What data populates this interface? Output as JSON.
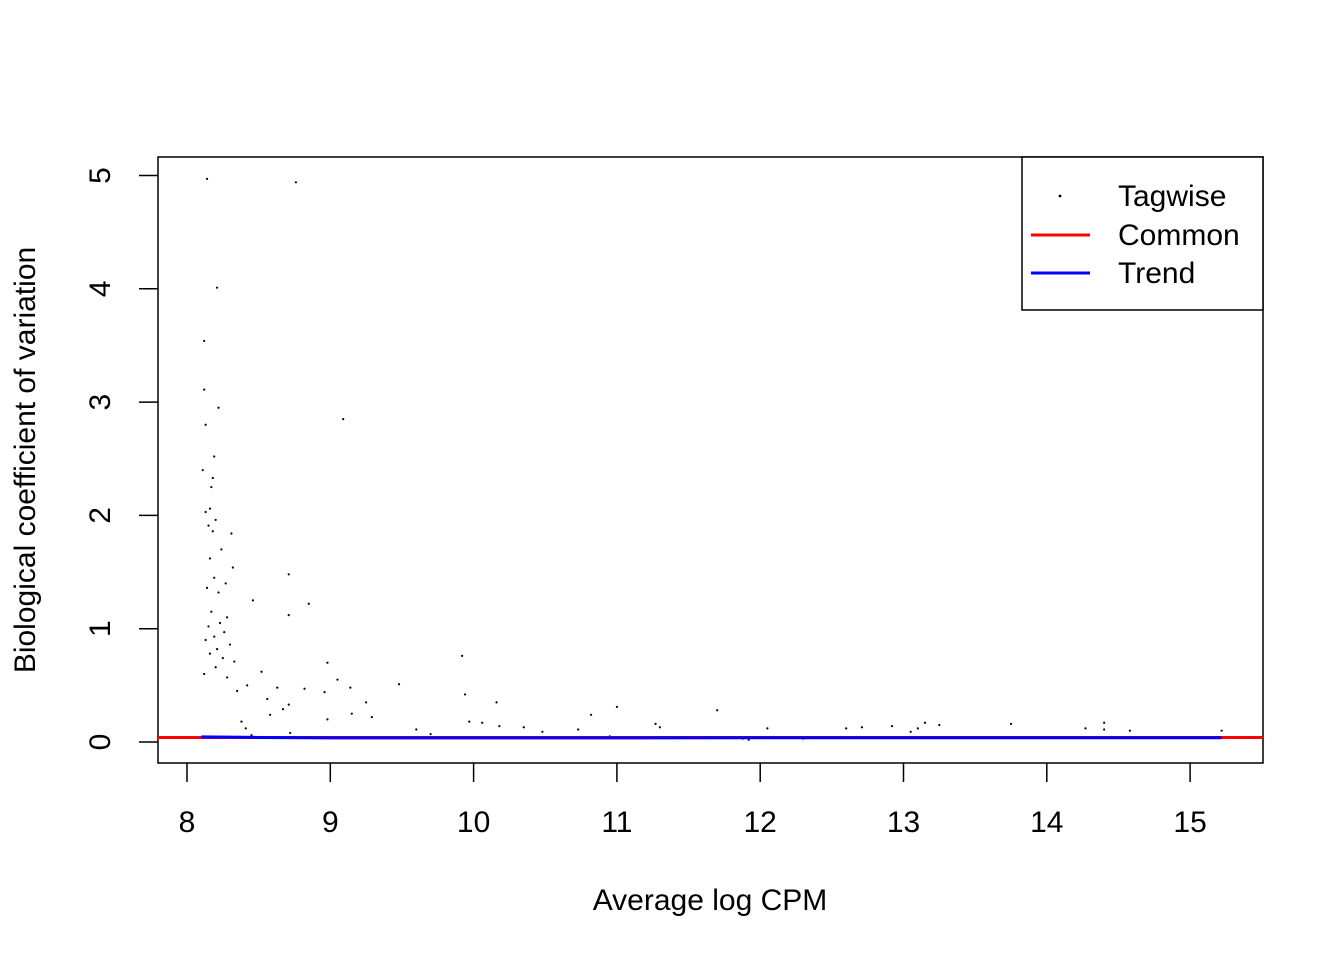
{
  "chart_data": {
    "type": "scatter",
    "title": "",
    "xlabel": "Average log CPM",
    "ylabel": "Biological coefficient of variation",
    "xlim": [
      7.8,
      15.5
    ],
    "ylim": [
      -0.2,
      5.2
    ],
    "x_ticks": [
      8,
      9,
      10,
      11,
      12,
      13,
      14,
      15
    ],
    "y_ticks": [
      0,
      1,
      2,
      3,
      4,
      5
    ],
    "x_tick_labels": [
      "8",
      "9",
      "10",
      "11",
      "12",
      "13",
      "14",
      15
    ],
    "y_tick_labels": [
      "0",
      "1",
      "2",
      "3",
      "4",
      "5"
    ],
    "grid": false,
    "legend_position": "top-right",
    "legend": [
      {
        "label": "Tagwise",
        "kind": "point",
        "color": "#000000"
      },
      {
        "label": "Common",
        "kind": "line",
        "color": "#ff0000"
      },
      {
        "label": "Trend",
        "kind": "line",
        "color": "#0000ff"
      }
    ],
    "series": [
      {
        "name": "Tagwise",
        "kind": "points",
        "color": "#000000",
        "points": [
          [
            8.14,
            4.97
          ],
          [
            8.76,
            4.94
          ],
          [
            8.21,
            4.01
          ],
          [
            8.12,
            3.54
          ],
          [
            8.12,
            3.11
          ],
          [
            8.22,
            2.95
          ],
          [
            9.09,
            2.85
          ],
          [
            8.13,
            2.8
          ],
          [
            8.19,
            2.52
          ],
          [
            8.11,
            2.4
          ],
          [
            8.18,
            2.33
          ],
          [
            8.17,
            2.25
          ],
          [
            8.16,
            2.06
          ],
          [
            8.13,
            2.03
          ],
          [
            8.2,
            1.96
          ],
          [
            8.15,
            1.91
          ],
          [
            8.18,
            1.86
          ],
          [
            8.31,
            1.84
          ],
          [
            8.24,
            1.7
          ],
          [
            8.16,
            1.62
          ],
          [
            8.32,
            1.54
          ],
          [
            8.71,
            1.48
          ],
          [
            8.19,
            1.45
          ],
          [
            8.27,
            1.4
          ],
          [
            8.14,
            1.36
          ],
          [
            8.22,
            1.32
          ],
          [
            8.46,
            1.25
          ],
          [
            8.85,
            1.22
          ],
          [
            8.71,
            1.12
          ],
          [
            8.17,
            1.15
          ],
          [
            8.28,
            1.1
          ],
          [
            8.23,
            1.05
          ],
          [
            8.15,
            1.02
          ],
          [
            8.26,
            0.97
          ],
          [
            8.19,
            0.93
          ],
          [
            8.13,
            0.9
          ],
          [
            8.3,
            0.86
          ],
          [
            8.21,
            0.82
          ],
          [
            8.16,
            0.78
          ],
          [
            8.25,
            0.74
          ],
          [
            8.33,
            0.71
          ],
          [
            8.98,
            0.7
          ],
          [
            8.2,
            0.66
          ],
          [
            8.52,
            0.62
          ],
          [
            8.12,
            0.6
          ],
          [
            8.28,
            0.57
          ],
          [
            9.05,
            0.55
          ],
          [
            8.42,
            0.5
          ],
          [
            8.63,
            0.48
          ],
          [
            8.82,
            0.47
          ],
          [
            8.35,
            0.45
          ],
          [
            8.96,
            0.44
          ],
          [
            9.14,
            0.48
          ],
          [
            9.92,
            0.76
          ],
          [
            9.94,
            0.42
          ],
          [
            8.56,
            0.38
          ],
          [
            9.25,
            0.35
          ],
          [
            10.16,
            0.35
          ],
          [
            8.71,
            0.33
          ],
          [
            11.0,
            0.31
          ],
          [
            8.67,
            0.29
          ],
          [
            11.7,
            0.28
          ],
          [
            9.15,
            0.25
          ],
          [
            9.48,
            0.51
          ],
          [
            10.82,
            0.24
          ],
          [
            9.29,
            0.22
          ],
          [
            8.98,
            0.2
          ],
          [
            9.97,
            0.18
          ],
          [
            10.06,
            0.17
          ],
          [
            10.18,
            0.14
          ],
          [
            10.35,
            0.13
          ],
          [
            10.73,
            0.11
          ],
          [
            9.6,
            0.11
          ],
          [
            11.27,
            0.16
          ],
          [
            11.3,
            0.13
          ],
          [
            12.05,
            0.12
          ],
          [
            12.6,
            0.12
          ],
          [
            12.71,
            0.13
          ],
          [
            12.92,
            0.14
          ],
          [
            13.15,
            0.17
          ],
          [
            13.25,
            0.15
          ],
          [
            13.75,
            0.16
          ],
          [
            14.27,
            0.12
          ],
          [
            14.4,
            0.17
          ],
          [
            14.4,
            0.11
          ],
          [
            14.58,
            0.1
          ],
          [
            15.22,
            0.1
          ],
          [
            10.48,
            0.09
          ],
          [
            13.05,
            0.09
          ],
          [
            13.1,
            0.12
          ],
          [
            12.3,
            0.03
          ],
          [
            11.92,
            0.02
          ],
          [
            11.88,
            0.03
          ],
          [
            10.95,
            0.05
          ],
          [
            9.7,
            0.07
          ],
          [
            8.41,
            0.12
          ],
          [
            8.58,
            0.24
          ],
          [
            8.72,
            0.08
          ],
          [
            8.38,
            0.18
          ],
          [
            8.45,
            0.06
          ]
        ]
      },
      {
        "name": "Common",
        "kind": "hline",
        "color": "#ff0000",
        "y": 0.04
      },
      {
        "name": "Trend",
        "kind": "line",
        "color": "#0000ff",
        "x": [
          8.1,
          8.5,
          9.0,
          10.0,
          11.0,
          12.0,
          13.0,
          14.0,
          15.22
        ],
        "y": [
          0.045,
          0.04,
          0.036,
          0.036,
          0.036,
          0.037,
          0.037,
          0.037,
          0.037
        ]
      }
    ]
  }
}
